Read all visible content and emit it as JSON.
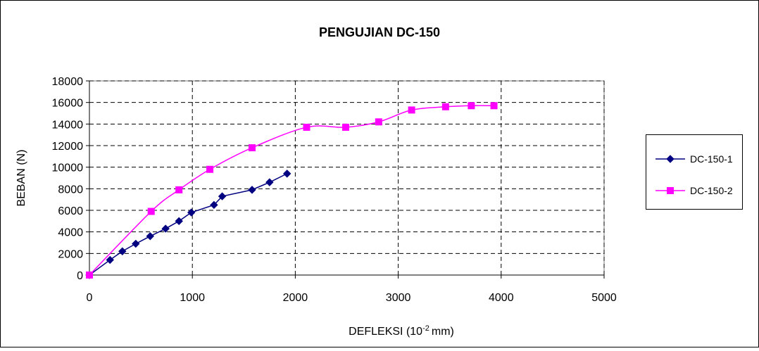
{
  "chart_data": {
    "type": "line",
    "title": "PENGUJIAN DC-150",
    "xlabel": {
      "main": "DEFLEKSI (10",
      "sup": "-2",
      "unit": "mm)"
    },
    "ylabel": "BEBAN (N)",
    "xlim": [
      0,
      5000
    ],
    "ylim": [
      0,
      18000
    ],
    "xticks": [
      0,
      1000,
      2000,
      3000,
      4000,
      5000
    ],
    "yticks": [
      0,
      2000,
      4000,
      6000,
      8000,
      10000,
      12000,
      14000,
      16000,
      18000
    ],
    "grid": {
      "horizontal": "dashed",
      "vertical": "dashed"
    },
    "legend_position": "right",
    "series": [
      {
        "name": "DC-150-1",
        "color": "#000080",
        "marker": "diamond",
        "smooth": false,
        "x": [
          0,
          200,
          320,
          450,
          590,
          740,
          870,
          990,
          1210,
          1290,
          1580,
          1750,
          1920
        ],
        "y": [
          0,
          1400,
          2200,
          2900,
          3600,
          4300,
          5000,
          5800,
          6500,
          7300,
          7900,
          8600,
          9400
        ]
      },
      {
        "name": "DC-150-2",
        "color": "#FF00FF",
        "marker": "square",
        "smooth": true,
        "x": [
          0,
          600,
          870,
          1170,
          1580,
          2110,
          2490,
          2810,
          3130,
          3460,
          3710,
          3930
        ],
        "y": [
          0,
          5900,
          7900,
          9800,
          11800,
          13700,
          13700,
          14200,
          15300,
          15600,
          15700,
          15700
        ]
      }
    ]
  }
}
